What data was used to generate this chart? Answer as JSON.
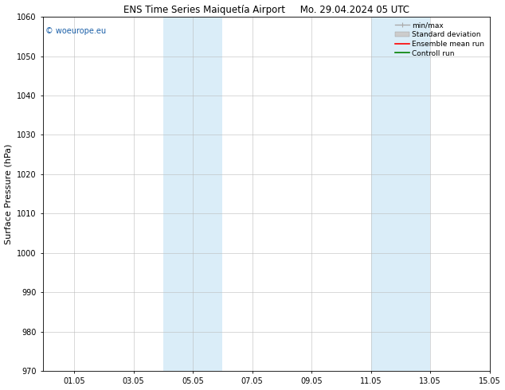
{
  "title_left": "ENS Time Series Maiquetía Airport",
  "title_right": "Mo. 29.04.2024 05 UTC",
  "ylabel": "Surface Pressure (hPa)",
  "ylim": [
    970,
    1060
  ],
  "yticks": [
    970,
    980,
    990,
    1000,
    1010,
    1020,
    1030,
    1040,
    1050,
    1060
  ],
  "xlim": [
    0.0,
    15.05
  ],
  "xticks": [
    1.05,
    3.05,
    5.05,
    7.05,
    9.05,
    11.05,
    13.05,
    15.05
  ],
  "xticklabels": [
    "01.05",
    "03.05",
    "05.05",
    "07.05",
    "09.05",
    "11.05",
    "13.05",
    "15.05"
  ],
  "shaded_bands": [
    {
      "x_start": 4.05,
      "x_end": 6.05
    },
    {
      "x_start": 11.05,
      "x_end": 13.05
    }
  ],
  "shaded_color": "#daedf8",
  "watermark_text": "© woeurope.eu",
  "watermark_color": "#1a5fa8",
  "legend_entries": [
    {
      "label": "min/max",
      "color": "#aaaaaa",
      "lw": 1.0
    },
    {
      "label": "Standard deviation",
      "color": "#cccccc",
      "lw": 6
    },
    {
      "label": "Ensemble mean run",
      "color": "red",
      "lw": 1.2
    },
    {
      "label": "Controll run",
      "color": "green",
      "lw": 1.2
    }
  ],
  "bg_color": "#ffffff",
  "grid_color": "#bbbbbb",
  "title_fontsize": 8.5,
  "tick_fontsize": 7,
  "label_fontsize": 8,
  "watermark_fontsize": 7,
  "legend_fontsize": 6.5
}
